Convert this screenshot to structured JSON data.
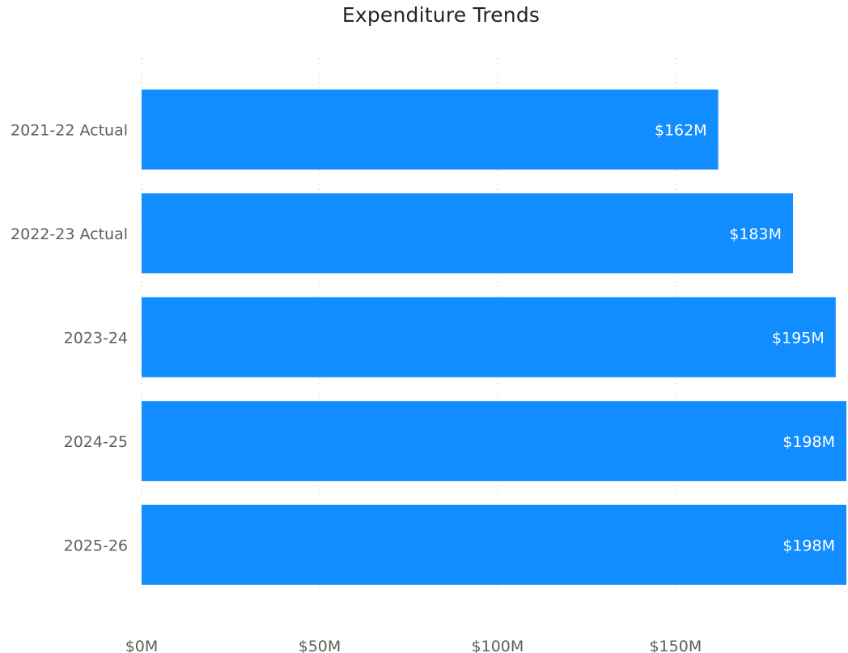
{
  "chart_data": {
    "type": "bar",
    "orientation": "horizontal",
    "title": "Expenditure Trends",
    "xlabel": "",
    "ylabel": "",
    "categories": [
      "2021-22 Actual",
      "2022-23 Actual",
      "2023-24",
      "2024-25",
      "2025-26"
    ],
    "values": [
      162,
      183,
      195,
      198,
      198
    ],
    "data_labels": [
      "$162M",
      "$183M",
      "$195M",
      "$198M",
      "$198M"
    ],
    "x_ticks": [
      0,
      50,
      100,
      150
    ],
    "x_tick_labels": [
      "$0M",
      "$50M",
      "$100M",
      "$150M"
    ],
    "xlim": [
      0,
      198
    ],
    "grid": true,
    "legend": "none",
    "bar_color": "#118dff"
  }
}
